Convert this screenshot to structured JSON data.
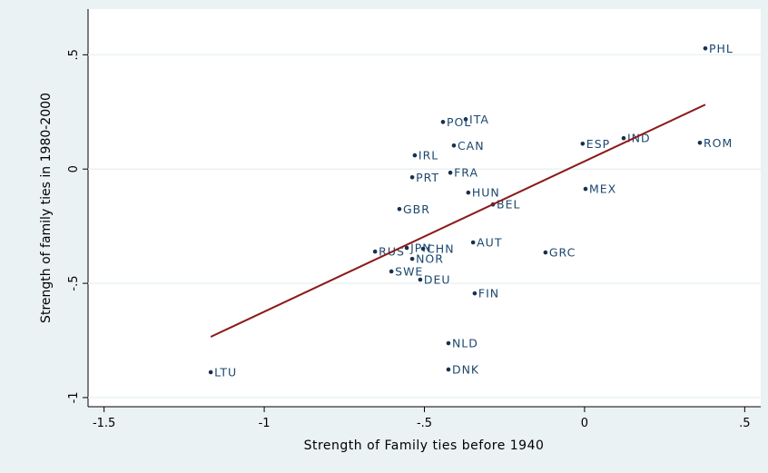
{
  "chart_data": {
    "type": "scatter",
    "x_label": "Strength of Family ties before 1940",
    "y_label": "Strength of family ties in 1980-2000",
    "xlim": [
      -1.55,
      0.55
    ],
    "ylim": [
      -1.04,
      0.7
    ],
    "xticks": [
      {
        "value": -1.5,
        "label": "-1.5"
      },
      -1,
      {
        "value": -0.5,
        "label": "-.5"
      },
      0,
      {
        "value": 0.5,
        "label": ".5"
      }
    ],
    "yticks": [
      -1,
      {
        "value": -0.5,
        "label": "-.5"
      },
      0,
      {
        "value": 0.5,
        "label": ".5"
      }
    ],
    "grid": true,
    "series": [
      {
        "type": "scatter",
        "color": "#1a2f4f",
        "labels": [
          "PHL",
          "ITA",
          "POL",
          "CAN",
          "ESP",
          "IND",
          "ROM",
          "IRL",
          "FRA",
          "PRT",
          "MEX",
          "HUN",
          "BEL",
          "GBR",
          "AUT",
          "RUS",
          "JPN",
          "CHN",
          "GRC",
          "NOR",
          "SWE",
          "DEU",
          "FIN",
          "NLD",
          "DNK",
          "LTU"
        ],
        "x": [
          0.377,
          -0.371,
          -0.442,
          -0.408,
          -0.006,
          0.122,
          0.36,
          -0.53,
          -0.419,
          -0.538,
          0.003,
          -0.363,
          -0.286,
          -0.578,
          -0.348,
          -0.654,
          -0.555,
          -0.504,
          -0.122,
          -0.538,
          -0.603,
          -0.513,
          -0.343,
          -0.425,
          -0.425,
          -1.167
        ],
        "values": [
          0.528,
          0.218,
          0.206,
          0.103,
          0.111,
          0.135,
          0.115,
          0.06,
          -0.016,
          -0.036,
          -0.087,
          -0.103,
          -0.155,
          -0.175,
          -0.321,
          -0.361,
          -0.345,
          -0.349,
          -0.365,
          -0.393,
          -0.448,
          -0.484,
          -0.544,
          -0.762,
          -0.877,
          -0.889
        ]
      },
      {
        "type": "line",
        "color": "#8b1a1a",
        "x": [
          -1.167,
          0.377
        ],
        "values": [
          -0.734,
          0.282
        ]
      }
    ]
  }
}
